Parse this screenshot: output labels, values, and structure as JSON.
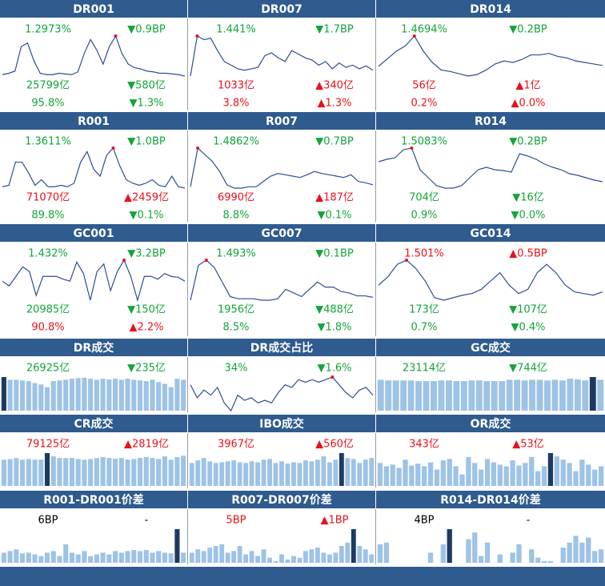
{
  "panels": [
    {
      "title": "DR001",
      "rows": [
        [
          {
            "text": "1.2973%",
            "color": "#13a538"
          },
          {
            "text": "▼0.9BP",
            "color": "#13a538"
          }
        ],
        [
          {
            "text": "25799亿",
            "color": "#13a538"
          },
          {
            "text": "▼580亿",
            "color": "#13a538"
          }
        ],
        [
          {
            "text": "95.8%",
            "color": "#13a538"
          },
          {
            "text": "▼1.3%",
            "color": "#13a538"
          }
        ]
      ],
      "line": [
        20,
        22,
        25,
        60,
        65,
        40,
        22,
        20,
        20,
        22,
        21,
        20,
        24,
        50,
        70,
        55,
        35,
        60,
        75,
        50,
        35,
        30,
        28,
        25,
        24,
        22,
        22,
        21,
        20,
        18
      ]
    },
    {
      "title": "DR007",
      "rows": [
        [
          {
            "text": "1.441%",
            "color": "#13a538"
          },
          {
            "text": "▼1.7BP",
            "color": "#13a538"
          }
        ],
        [
          {
            "text": "1033亿",
            "color": "#e8121a"
          },
          {
            "text": "▲340亿",
            "color": "#e8121a"
          }
        ],
        [
          {
            "text": "3.8%",
            "color": "#e8121a"
          },
          {
            "text": "▲1.3%",
            "color": "#e8121a"
          }
        ]
      ],
      "line": [
        20,
        75,
        70,
        72,
        55,
        40,
        35,
        30,
        28,
        30,
        32,
        48,
        52,
        45,
        40,
        55,
        50,
        45,
        42,
        35,
        40,
        30,
        38,
        32,
        35,
        30,
        34,
        28
      ]
    },
    {
      "title": "DR014",
      "rows": [
        [
          {
            "text": "1.4694%",
            "color": "#13a538"
          },
          {
            "text": "▼0.2BP",
            "color": "#13a538"
          }
        ],
        [
          {
            "text": "56亿",
            "color": "#e8121a"
          },
          {
            "text": "▲1亿",
            "color": "#e8121a"
          }
        ],
        [
          {
            "text": "0.2%",
            "color": "#e8121a"
          },
          {
            "text": "▲0.0%",
            "color": "#e8121a"
          }
        ]
      ],
      "line": [
        35,
        45,
        55,
        62,
        75,
        55,
        40,
        30,
        28,
        25,
        22,
        24,
        30,
        38,
        42,
        40,
        44,
        50,
        50,
        52,
        48,
        46,
        42,
        40,
        38,
        36
      ]
    },
    {
      "title": "R001",
      "rows": [
        [
          {
            "text": "1.3611%",
            "color": "#13a538"
          },
          {
            "text": "▼1.0BP",
            "color": "#13a538"
          }
        ],
        [
          {
            "text": "71070亿",
            "color": "#e8121a"
          },
          {
            "text": "▲2459亿",
            "color": "#e8121a"
          }
        ],
        [
          {
            "text": "89.8%",
            "color": "#13a538"
          },
          {
            "text": "▼0.1%",
            "color": "#13a538"
          }
        ]
      ],
      "line": [
        20,
        22,
        55,
        55,
        40,
        22,
        30,
        20,
        20,
        22,
        20,
        25,
        55,
        70,
        45,
        35,
        65,
        75,
        50,
        30,
        25,
        22,
        25,
        30,
        22,
        20,
        35,
        20,
        18
      ]
    },
    {
      "title": "R007",
      "rows": [
        [
          {
            "text": "1.4862%",
            "color": "#13a538"
          },
          {
            "text": "▼0.7BP",
            "color": "#13a538"
          }
        ],
        [
          {
            "text": "6990亿",
            "color": "#e8121a"
          },
          {
            "text": "▲187亿",
            "color": "#e8121a"
          }
        ],
        [
          {
            "text": "8.8%",
            "color": "#13a538"
          },
          {
            "text": "▼0.1%",
            "color": "#13a538"
          }
        ]
      ],
      "line": [
        22,
        80,
        70,
        60,
        45,
        25,
        20,
        20,
        22,
        22,
        30,
        38,
        42,
        40,
        38,
        36,
        40,
        45,
        42,
        40,
        38,
        36,
        40,
        30,
        28,
        25
      ]
    },
    {
      "title": "R014",
      "rows": [
        [
          {
            "text": "1.5083%",
            "color": "#13a538"
          },
          {
            "text": "▼0.2BP",
            "color": "#13a538"
          }
        ],
        [
          {
            "text": "704亿",
            "color": "#13a538"
          },
          {
            "text": "▼16亿",
            "color": "#13a538"
          }
        ],
        [
          {
            "text": "0.9%",
            "color": "#13a538"
          },
          {
            "text": "▼0.0%",
            "color": "#13a538"
          }
        ]
      ],
      "line": [
        55,
        58,
        60,
        70,
        72,
        45,
        35,
        25,
        22,
        22,
        25,
        35,
        45,
        48,
        45,
        44,
        42,
        65,
        62,
        58,
        52,
        48,
        45,
        40,
        38,
        35,
        32,
        30
      ]
    },
    {
      "title": "GC001",
      "rows": [
        [
          {
            "text": "1.432%",
            "color": "#13a538"
          },
          {
            "text": "▼3.2BP",
            "color": "#13a538"
          }
        ],
        [
          {
            "text": "20985亿",
            "color": "#13a538"
          },
          {
            "text": "▼150亿",
            "color": "#13a538"
          }
        ],
        [
          {
            "text": "90.8%",
            "color": "#e8121a"
          },
          {
            "text": "▲2.2%",
            "color": "#e8121a"
          }
        ]
      ],
      "line": [
        40,
        35,
        45,
        55,
        50,
        25,
        45,
        45,
        45,
        42,
        40,
        60,
        48,
        20,
        50,
        58,
        30,
        50,
        62,
        45,
        20,
        45,
        45,
        42,
        48,
        45,
        44,
        40
      ]
    },
    {
      "title": "GC007",
      "rows": [
        [
          {
            "text": "1.493%",
            "color": "#13a538"
          },
          {
            "text": "▼0.1BP",
            "color": "#13a538"
          }
        ],
        [
          {
            "text": "1956亿",
            "color": "#13a538"
          },
          {
            "text": "▼488亿",
            "color": "#13a538"
          }
        ],
        [
          {
            "text": "8.5%",
            "color": "#13a538"
          },
          {
            "text": "▼1.8%",
            "color": "#13a538"
          }
        ]
      ],
      "line": [
        20,
        68,
        75,
        65,
        45,
        25,
        22,
        22,
        22,
        20,
        20,
        22,
        35,
        30,
        25,
        35,
        45,
        38,
        38,
        32,
        30,
        26,
        26,
        24
      ]
    },
    {
      "title": "GC014",
      "rows": [
        [
          {
            "text": "1.501%",
            "color": "#e8121a"
          },
          {
            "text": "▲0.5BP",
            "color": "#e8121a"
          }
        ],
        [
          {
            "text": "173亿",
            "color": "#13a538"
          },
          {
            "text": "▼107亿",
            "color": "#13a538"
          }
        ],
        [
          {
            "text": "0.7%",
            "color": "#13a538"
          },
          {
            "text": "▼0.4%",
            "color": "#13a538"
          }
        ]
      ],
      "line": [
        40,
        50,
        65,
        70,
        60,
        45,
        25,
        22,
        25,
        28,
        30,
        35,
        45,
        55,
        40,
        30,
        35,
        55,
        65,
        55,
        40,
        32,
        30,
        28,
        32
      ]
    },
    {
      "title": "DR成交",
      "rows": [
        [
          {
            "text": "26925亿",
            "color": "#13a538"
          },
          {
            "text": "▼235亿",
            "color": "#13a538"
          }
        ]
      ],
      "bars": [
        100,
        92,
        92,
        90,
        88,
        82,
        78,
        70,
        88,
        90,
        92,
        95,
        97,
        98,
        95,
        92,
        95,
        93,
        95,
        92,
        95,
        92,
        90,
        88,
        92,
        85,
        80,
        70,
        95,
        92
      ],
      "highlight": 0
    },
    {
      "title": "DR成交占比",
      "rows": [
        [
          {
            "text": "34%",
            "color": "#13a538"
          },
          {
            "text": "▼1.6%",
            "color": "#13a538"
          }
        ]
      ],
      "line": [
        55,
        30,
        45,
        35,
        50,
        20,
        5,
        35,
        25,
        30,
        20,
        25,
        20,
        40,
        55,
        50,
        65,
        60,
        65,
        60,
        65,
        70,
        55,
        40,
        30,
        45,
        50,
        35
      ]
    },
    {
      "title": "GC成交",
      "rows": [
        [
          {
            "text": "23114亿",
            "color": "#13a538"
          },
          {
            "text": "▼744亿",
            "color": "#13a538"
          }
        ]
      ],
      "bars": [
        92,
        90,
        90,
        90,
        90,
        88,
        88,
        88,
        90,
        90,
        88,
        88,
        90,
        90,
        88,
        88,
        88,
        92,
        92,
        90,
        92,
        92,
        90,
        92,
        90,
        95,
        93,
        90,
        100,
        92
      ],
      "highlight": 28
    },
    {
      "title": "CR成交",
      "rows": [
        [
          {
            "text": "79125亿",
            "color": "#e8121a"
          },
          {
            "text": "▲2819亿",
            "color": "#e8121a"
          }
        ]
      ],
      "bars": [
        80,
        82,
        85,
        80,
        82,
        80,
        80,
        100,
        90,
        85,
        85,
        85,
        82,
        80,
        82,
        85,
        88,
        85,
        83,
        85,
        80,
        82,
        85,
        88,
        85,
        82,
        90,
        80,
        88,
        92
      ],
      "highlight": 7
    },
    {
      "title": "IBO成交",
      "rows": [
        [
          {
            "text": "3967亿",
            "color": "#e8121a"
          },
          {
            "text": "▲560亿",
            "color": "#e8121a"
          }
        ]
      ],
      "bars": [
        70,
        78,
        85,
        75,
        70,
        72,
        75,
        78,
        72,
        70,
        75,
        72,
        80,
        82,
        70,
        75,
        68,
        72,
        70,
        78,
        75,
        80,
        90,
        72,
        80,
        100,
        85,
        82,
        70,
        80,
        85
      ],
      "highlight": 25
    },
    {
      "title": "OR成交",
      "rows": [
        [
          {
            "text": "343亿",
            "color": "#e8121a"
          },
          {
            "text": "▲53亿",
            "color": "#e8121a"
          }
        ]
      ],
      "bars": [
        70,
        60,
        65,
        55,
        80,
        62,
        68,
        60,
        72,
        50,
        78,
        82,
        60,
        35,
        88,
        70,
        50,
        82,
        72,
        65,
        60,
        78,
        62,
        70,
        88,
        45,
        60,
        100,
        90,
        80,
        70,
        45,
        80,
        65,
        50,
        60
      ],
      "highlight": 27
    },
    {
      "title": "R001-DR001价差",
      "rows": [
        [
          {
            "text": "6BP",
            "color": "#000000"
          },
          {
            "text": "-",
            "color": "#000000"
          }
        ]
      ],
      "bars": [
        30,
        35,
        40,
        28,
        30,
        25,
        20,
        30,
        35,
        20,
        55,
        30,
        25,
        35,
        20,
        25,
        30,
        25,
        35,
        30,
        35,
        38,
        35,
        38,
        30,
        35,
        30,
        28,
        100,
        30
      ],
      "highlight": 28
    },
    {
      "title": "R007-DR007价差",
      "rows": [
        [
          {
            "text": "5BP",
            "color": "#e8121a"
          },
          {
            "text": "▲1BP",
            "color": "#e8121a"
          }
        ]
      ],
      "bars": [
        30,
        40,
        35,
        45,
        50,
        55,
        30,
        35,
        50,
        25,
        35,
        20,
        40,
        15,
        5,
        25,
        10,
        20,
        15,
        35,
        40,
        45,
        30,
        25,
        30,
        50,
        60,
        100,
        50,
        40,
        25
      ],
      "highlight": 27
    },
    {
      "title": "R014-DR014价差",
      "rows": [
        [
          {
            "text": "4BP",
            "color": "#000000"
          },
          {
            "text": "-",
            "color": "#000000"
          }
        ]
      ],
      "bars": [
        55,
        60,
        0,
        0,
        0,
        0,
        0,
        0,
        30,
        0,
        55,
        100,
        0,
        0,
        70,
        90,
        20,
        60,
        0,
        25,
        0,
        30,
        55,
        0,
        40,
        15,
        5,
        5,
        0,
        45,
        60,
        80,
        60,
        75,
        35,
        40
      ],
      "highlight": 11
    }
  ]
}
